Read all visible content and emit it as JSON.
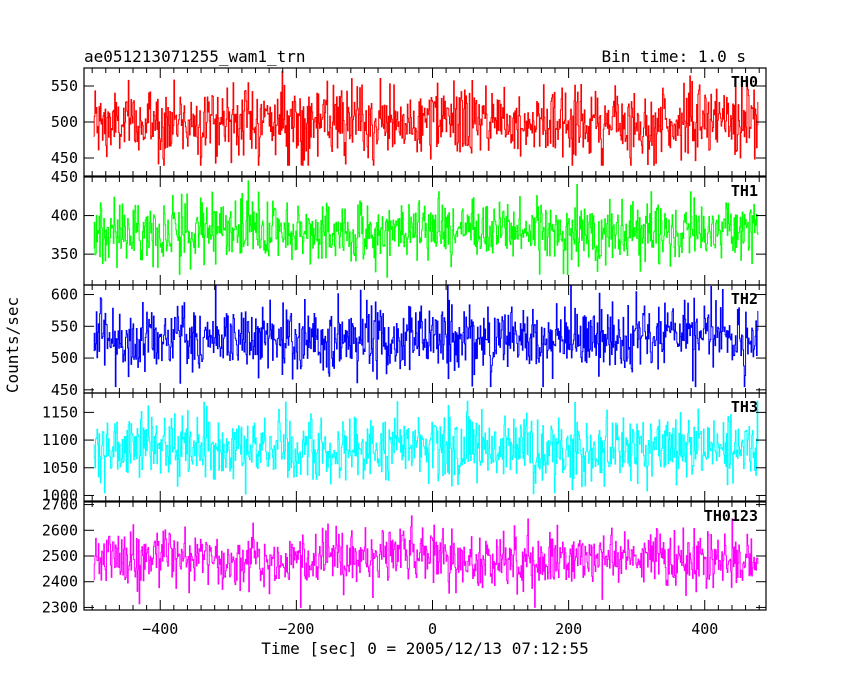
{
  "header": {
    "title": "ae051213071255_wam1_trn",
    "bin_time": "Bin time: 1.0 s"
  },
  "axes": {
    "ylabel": "Counts/sec",
    "xlabel": "Time [sec] 0 = 2005/12/13 07:12:55"
  },
  "chart_data": {
    "type": "line",
    "title": "ae051213071255_wam1_trn",
    "xlabel": "Time [sec] 0 = 2005/12/13 07:12:55",
    "ylabel": "Counts/sec",
    "xlim": [
      -512,
      490
    ],
    "x_range": [
      -498,
      478
    ],
    "bin_time_s": 1.0,
    "x_ticks": [
      -400,
      -200,
      0,
      200,
      400
    ],
    "x_tick_labels": [
      "−400",
      "−200",
      "0",
      "200",
      "400"
    ],
    "grid": false,
    "panels": [
      {
        "name": "TH0",
        "color": "#ff0000",
        "ylim": [
          425,
          575
        ],
        "y_ticks": [
          450,
          500,
          550
        ],
        "y_tick_labels": [
          "450",
          "500",
          "550"
        ],
        "mean": 500,
        "stdev": 25,
        "min": 440,
        "max": 575
      },
      {
        "name": "TH1",
        "color": "#00ff00",
        "ylim": [
          310,
          450
        ],
        "y_ticks": [
          350,
          400,
          450
        ],
        "y_tick_labels": [
          "350",
          "400",
          "450"
        ],
        "mean": 380,
        "stdev": 20,
        "min": 320,
        "max": 445
      },
      {
        "name": "TH2",
        "color": "#0000ff",
        "ylim": [
          445,
          615
        ],
        "y_ticks": [
          450,
          500,
          550,
          600
        ],
        "y_tick_labels": [
          "450",
          "500",
          "550",
          "600"
        ],
        "mean": 530,
        "stdev": 28,
        "min": 455,
        "max": 615
      },
      {
        "name": "TH3",
        "color": "#00ffff",
        "ylim": [
          990,
          1185
        ],
        "y_ticks": [
          1000,
          1050,
          1100,
          1150
        ],
        "y_tick_labels": [
          "1000",
          "1050",
          "1100",
          "1150"
        ],
        "mean": 1085,
        "stdev": 30,
        "min": 995,
        "max": 1185
      },
      {
        "name": "TH0123",
        "color": "#ff00ff",
        "ylim": [
          2290,
          2710
        ],
        "y_ticks": [
          2300,
          2400,
          2500,
          2600,
          2700
        ],
        "y_tick_labels": [
          "2300",
          "2400",
          "2500",
          "2600",
          "2700"
        ],
        "mean": 2490,
        "stdev": 55,
        "min": 2300,
        "max": 2700
      }
    ]
  }
}
